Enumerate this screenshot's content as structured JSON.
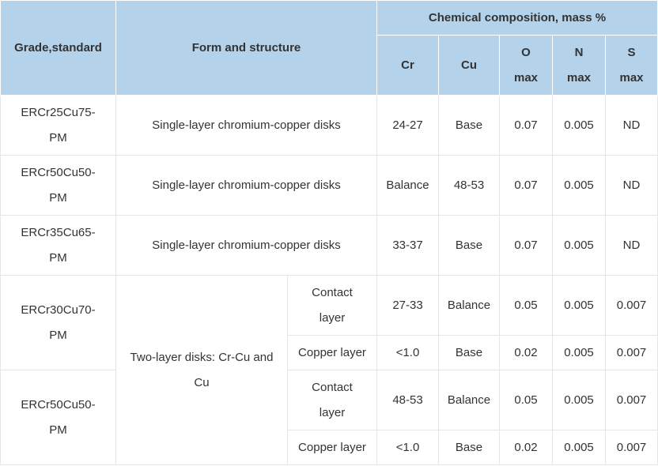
{
  "header": {
    "grade": "Grade,standard",
    "form": "Form and structure",
    "composition": "Chemical composition, mass %",
    "cr": "Cr",
    "cu": "Cu",
    "o": "O",
    "o_sub": "max",
    "n": "N",
    "n_sub": "max",
    "s": "S",
    "s_sub": "max"
  },
  "rows": [
    {
      "grade_a": "ERCr25Cu75-",
      "grade_b": "PM",
      "form": "Single-layer chromium-copper disks",
      "cr": "24-27",
      "cu": "Base",
      "o": "0.07",
      "n": "0.005",
      "s": "ND"
    },
    {
      "grade_a": "ERCr50Cu50-",
      "grade_b": "PM",
      "form": "Single-layer chromium-copper disks",
      "cr": "Balance",
      "cu": "48-53",
      "o": "0.07",
      "n": "0.005",
      "s": "ND"
    },
    {
      "grade_a": "ERCr35Cu65-",
      "grade_b": "PM",
      "form": "Single-layer chromium-copper disks",
      "cr": "33-37",
      "cu": "Base",
      "o": "0.07",
      "n": "0.005",
      "s": "ND"
    }
  ],
  "two_layer": {
    "form_a": "Two-layer disks: Cr-Cu and",
    "form_b": "Cu",
    "groups": [
      {
        "grade_a": "ERCr30Cu70-",
        "grade_b": "PM",
        "contact": {
          "layer_a": "Contact",
          "layer_b": "layer",
          "cr": "27-33",
          "cu": "Balance",
          "o": "0.05",
          "n": "0.005",
          "s": "0.007"
        },
        "copper": {
          "layer": "Copper layer",
          "cr": "<1.0",
          "cu": "Base",
          "o": "0.02",
          "n": "0.005",
          "s": "0.007"
        }
      },
      {
        "grade_a": "ERCr50Cu50-",
        "grade_b": "PM",
        "contact": {
          "layer_a": "Contact",
          "layer_b": "layer",
          "cr": "48-53",
          "cu": "Balance",
          "o": "0.05",
          "n": "0.005",
          "s": "0.007"
        },
        "copper": {
          "layer": "Copper layer",
          "cr": "<1.0",
          "cu": "Base",
          "o": "0.02",
          "n": "0.005",
          "s": "0.007"
        }
      }
    ]
  },
  "colors": {
    "header_bg": "#b4d2ea",
    "border": "#e3e6ea",
    "text": "#333333"
  }
}
